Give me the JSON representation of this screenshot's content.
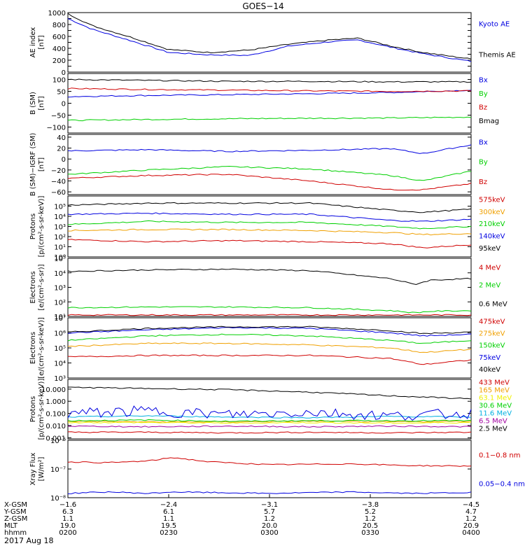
{
  "title": "GOES−14",
  "date_label": "2017 Aug 18",
  "colors": {
    "black": "#000000",
    "blue": "#0000e0",
    "green": "#00d000",
    "red": "#d00000",
    "orange": "#f0a000",
    "yellow": "#f0f000",
    "cyan": "#00b0e0",
    "purple": "#a000a0"
  },
  "chart_data": [
    {
      "type": "line",
      "id": "ae",
      "ylabel": "AE index\n[nT]",
      "scale": "linear",
      "ylim": [
        0,
        1000
      ],
      "ticks": [
        0,
        100,
        200,
        300,
        400,
        500,
        600,
        700,
        800,
        900,
        1000
      ],
      "tick_labels": [
        "0",
        "",
        "200",
        "",
        "400",
        "",
        "600",
        "",
        "800",
        "",
        "1000"
      ],
      "x": [
        0,
        0.06,
        0.15,
        0.25,
        0.35,
        0.45,
        0.55,
        0.65,
        0.72,
        0.8,
        0.88,
        1
      ],
      "series": [
        {
          "name": "Kyoto AE",
          "color": "blue",
          "values": [
            900,
            720,
            540,
            330,
            290,
            280,
            440,
            510,
            540,
            420,
            310,
            180
          ],
          "label_y": 0.18
        },
        {
          "name": "Themis AE",
          "color": "black",
          "values": [
            980,
            780,
            600,
            380,
            330,
            370,
            470,
            540,
            570,
            440,
            330,
            220
          ],
          "label_y": 0.7
        }
      ]
    },
    {
      "type": "line",
      "id": "bsm",
      "ylabel": "B (SM)\n[nT]",
      "scale": "linear",
      "ylim": [
        -125,
        125
      ],
      "ticks": [
        -100,
        -50,
        0,
        50,
        100
      ],
      "tick_labels": [
        "−100",
        "−50",
        "0",
        "50",
        "100"
      ],
      "x": [
        0,
        0.2,
        0.4,
        0.6,
        0.8,
        1
      ],
      "series": [
        {
          "name": "Bx",
          "color": "blue",
          "values": [
            28,
            33,
            36,
            40,
            45,
            55
          ],
          "label_y": 0.1
        },
        {
          "name": "By",
          "color": "green",
          "values": [
            -72,
            -68,
            -65,
            -63,
            -62,
            -58
          ],
          "label_y": 0.33
        },
        {
          "name": "Bz",
          "color": "red",
          "values": [
            62,
            58,
            55,
            52,
            50,
            52
          ],
          "label_y": 0.56
        },
        {
          "name": "Bmag",
          "color": "black",
          "values": [
            100,
            96,
            92,
            92,
            90,
            90
          ],
          "label_y": 0.79
        }
      ]
    },
    {
      "type": "line",
      "id": "bigrf",
      "ylabel": "B (SM)−IGRF (SM)\n[nT]",
      "scale": "linear",
      "ylim": [
        -65,
        45
      ],
      "ticks": [
        -60,
        -40,
        -20,
        0,
        20,
        40
      ],
      "tick_labels": [
        "−60",
        "−40",
        "−20",
        "0",
        "20",
        "40"
      ],
      "x": [
        0,
        0.2,
        0.4,
        0.6,
        0.8,
        0.88,
        1
      ],
      "series": [
        {
          "name": "Bx",
          "color": "blue",
          "values": [
            15,
            17,
            14,
            16,
            19,
            10,
            26
          ],
          "label_y": 0.12
        },
        {
          "name": "By",
          "color": "green",
          "values": [
            -28,
            -20,
            -14,
            -18,
            -30,
            -40,
            -22
          ],
          "label_y": 0.45
        },
        {
          "name": "Bz",
          "color": "red",
          "values": [
            -35,
            -30,
            -28,
            -40,
            -56,
            -56,
            -45
          ],
          "label_y": 0.78
        }
      ]
    },
    {
      "type": "line",
      "id": "protons",
      "ylabel": "Protons\n[p/(cm²-s-sr-keV)]",
      "scale": "log",
      "ylim": [
        0,
        6
      ],
      "ticks": [
        0,
        1,
        2,
        3,
        4,
        5
      ],
      "tick_labels": [
        "10⁰",
        "10¹",
        "10²",
        "10³",
        "10⁴",
        "10⁵"
      ],
      "x": [
        0,
        0.2,
        0.4,
        0.6,
        0.8,
        0.88,
        1
      ],
      "series": [
        {
          "name": "575keV",
          "color": "red",
          "values": [
            1.7,
            1.5,
            1.6,
            1.5,
            1.3,
            0.9,
            1.2
          ],
          "label_y": 0.05
        },
        {
          "name": "300keV",
          "color": "orange",
          "values": [
            2.6,
            2.7,
            2.7,
            2.6,
            2.4,
            2.2,
            2.3
          ],
          "label_y": 0.25
        },
        {
          "name": "210keV",
          "color": "green",
          "values": [
            3.2,
            3.5,
            3.4,
            3.4,
            3.0,
            2.8,
            3.0
          ],
          "label_y": 0.45
        },
        {
          "name": "140keV",
          "color": "blue",
          "values": [
            4.2,
            4.3,
            4.2,
            4.2,
            3.6,
            3.5,
            3.7
          ],
          "label_y": 0.65
        },
        {
          "name": "95keV",
          "color": "black",
          "values": [
            5.1,
            5.3,
            5.3,
            5.3,
            4.6,
            4.4,
            4.7
          ],
          "label_y": 0.85
        }
      ]
    },
    {
      "type": "line",
      "id": "electrons_mev",
      "ylabel": "Electrons\n[e/(cm²-s-sr)]",
      "scale": "log",
      "ylim": [
        1,
        5
      ],
      "ticks": [
        1,
        2,
        3,
        4,
        5
      ],
      "tick_labels": [
        "10¹",
        "10²",
        "10³",
        "10⁴",
        "10⁵"
      ],
      "x": [
        0,
        0.2,
        0.4,
        0.6,
        0.8,
        0.86,
        0.9,
        1
      ],
      "series": [
        {
          "name": "4 MeV",
          "color": "red",
          "values": [
            1.1,
            1.1,
            1.1,
            1.1,
            1.1,
            1.1,
            1.1,
            1.1
          ],
          "label_y": 0.15
        },
        {
          "name": "2 MeV",
          "color": "green",
          "values": [
            1.6,
            1.65,
            1.65,
            1.6,
            1.4,
            1.25,
            1.35,
            1.4
          ],
          "label_y": 0.45
        },
        {
          "name": "0.6 MeV",
          "color": "black",
          "values": [
            4.1,
            4.2,
            4.25,
            4.15,
            3.6,
            3.2,
            3.5,
            3.6
          ],
          "label_y": 0.78
        }
      ]
    },
    {
      "type": "line",
      "id": "electrons_kev",
      "ylabel": "Electrons\n[e/(cm²-s-sr-keV)]",
      "scale": "log",
      "ylim": [
        3,
        7
      ],
      "ticks": [
        3,
        4,
        5,
        6,
        7
      ],
      "tick_labels": [
        "10³",
        "10⁴",
        "10⁵",
        "10⁶",
        "10⁷"
      ],
      "x": [
        0,
        0.2,
        0.4,
        0.6,
        0.8,
        0.88,
        1
      ],
      "series": [
        {
          "name": "475keV",
          "color": "red",
          "values": [
            4.4,
            4.5,
            4.5,
            4.5,
            4.3,
            3.9,
            4.2
          ],
          "label_y": 0.05
        },
        {
          "name": "275keV",
          "color": "orange",
          "values": [
            5.1,
            5.3,
            5.3,
            5.2,
            5.0,
            4.7,
            4.9
          ],
          "label_y": 0.25
        },
        {
          "name": "150keV",
          "color": "green",
          "values": [
            5.5,
            5.8,
            5.9,
            5.8,
            5.5,
            5.3,
            5.5
          ],
          "label_y": 0.45
        },
        {
          "name": "75keV",
          "color": "blue",
          "values": [
            6.0,
            6.2,
            6.35,
            6.3,
            6.0,
            5.8,
            5.9
          ],
          "label_y": 0.65
        },
        {
          "name": "40keV",
          "color": "black",
          "values": [
            6.05,
            6.3,
            6.4,
            6.4,
            6.15,
            5.95,
            6.05
          ],
          "label_y": 0.85
        }
      ]
    },
    {
      "type": "line",
      "id": "protons_mev",
      "ylabel": "Protons\n[p/(cm²-s-sr-keV)]",
      "scale": "log",
      "ylim": [
        -3.1,
        1.8
      ],
      "ticks": [
        -3,
        -2,
        -1,
        0,
        1
      ],
      "tick_labels": [
        "0.001",
        "0.010",
        "0.100",
        "1.000",
        "10.000"
      ],
      "x": [
        0,
        0.2,
        0.4,
        0.6,
        0.8,
        1
      ],
      "series": [
        {
          "name": "433 MeV",
          "color": "red",
          "values": [
            -2.55,
            -2.55,
            -2.6,
            -2.55,
            -2.6,
            -2.55
          ],
          "label_y": 0.04
        },
        {
          "name": "165 MeV",
          "color": "orange",
          "values": [
            -1.65,
            -1.7,
            -1.7,
            -1.65,
            -1.7,
            -1.65
          ],
          "label_y": 0.17
        },
        {
          "name": "63.1 MeV",
          "color": "yellow",
          "values": [
            -1.75,
            -1.75,
            -1.8,
            -1.75,
            -1.8,
            -1.75
          ],
          "label_y": 0.3
        },
        {
          "name": "30.6 MeV",
          "color": "green",
          "values": [
            -1.6,
            -1.55,
            -1.65,
            -1.6,
            -1.6,
            -1.6
          ],
          "label_y": 0.43
        },
        {
          "name": "11.6 MeV",
          "color": "cyan",
          "values": [
            -1.3,
            -1.2,
            -1.3,
            -1.35,
            -1.25,
            -1.3
          ],
          "label_y": 0.56
        },
        {
          "name": "6.5 MeV",
          "color": "purple",
          "values": [
            -2.05,
            -2.1,
            -2.05,
            -2.1,
            -2.05,
            -2.1
          ],
          "label_y": 0.69
        },
        {
          "name": "2.5 MeV",
          "color": "black",
          "values": [
            1.15,
            1.05,
            0.95,
            0.75,
            0.45,
            0.2
          ],
          "label_y": 0.82
        }
      ],
      "noisy": {
        "name": "",
        "color": "blue",
        "values": [
          -1.0,
          -0.8,
          -1.1,
          -0.9,
          -1.2,
          -1.0
        ]
      }
    },
    {
      "type": "line",
      "id": "xray",
      "ylabel": "Xray Flux\n[W/m²]",
      "scale": "log",
      "ylim": [
        -8,
        -6
      ],
      "ticks": [
        -8,
        -7,
        -6
      ],
      "tick_labels": [
        "10⁻⁸",
        "10⁻⁷",
        "10⁻⁶"
      ],
      "x": [
        0,
        0.1,
        0.2,
        0.26,
        0.35,
        0.5,
        0.7,
        0.85,
        1
      ],
      "series": [
        {
          "name": "0.1−0.8 nm",
          "color": "red",
          "values": [
            -6.75,
            -6.78,
            -6.72,
            -6.6,
            -6.75,
            -6.85,
            -6.82,
            -6.88,
            -6.9
          ],
          "label_y": 0.25
        },
        {
          "name": "0.05−0.4 nm",
          "color": "blue",
          "values": [
            -7.85,
            -7.8,
            -7.85,
            -7.8,
            -7.82,
            -7.85,
            -7.8,
            -7.85,
            -7.82
          ],
          "label_y": 0.75
        }
      ]
    }
  ],
  "x_axis": {
    "rows": [
      "X-GSM",
      "Y-GSM",
      "Z-GSM",
      "MLT",
      "hhmm"
    ],
    "ticks": [
      {
        "vals": [
          "−1.6",
          "6.3",
          "1.1",
          "19.0",
          "0200"
        ]
      },
      {
        "vals": [
          "−2.4",
          "6.1",
          "1.1",
          "19.5",
          "0230"
        ]
      },
      {
        "vals": [
          "−3.1",
          "5.7",
          "1.2",
          "20.0",
          "0300"
        ]
      },
      {
        "vals": [
          "−3.8",
          "5.2",
          "1.2",
          "20.5",
          "0330"
        ]
      },
      {
        "vals": [
          "−4.5",
          "4.7",
          "1.2",
          "20.9",
          "0400"
        ]
      }
    ]
  }
}
